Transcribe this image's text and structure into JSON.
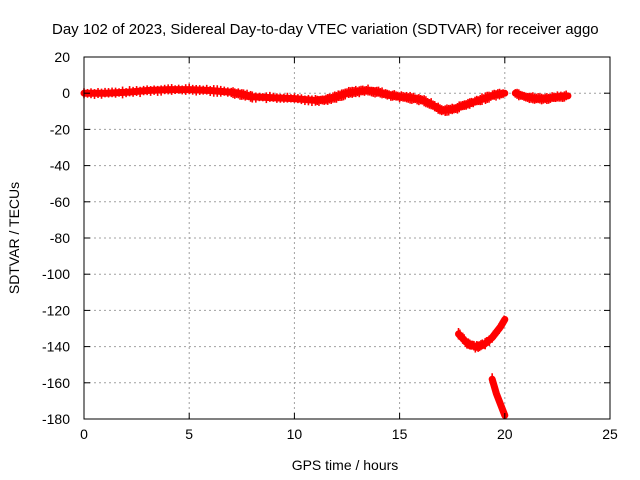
{
  "chart_data": {
    "type": "scatter",
    "title": "Day 102 of 2023, Sidereal Day-to-day VTEC variation (SDTVAR) for receiver aggo",
    "xlabel": "GPS time / hours",
    "ylabel": "SDTVAR / TECUs",
    "xlim": [
      0,
      25
    ],
    "ylim": [
      -180,
      20
    ],
    "xticks": [
      0,
      5,
      10,
      15,
      20,
      25
    ],
    "yticks": [
      20,
      0,
      -20,
      -40,
      -60,
      -80,
      -100,
      -120,
      -140,
      -160,
      -180
    ],
    "grid": true,
    "marker_color": "#ff0000",
    "series": [
      {
        "name": "main",
        "x": [
          0,
          1,
          2,
          3,
          4,
          5,
          6,
          7,
          7.5,
          8,
          9,
          10,
          11,
          11.5,
          12,
          12.5,
          13,
          13.5,
          14,
          14.5,
          15,
          15.5,
          16,
          16.5,
          17,
          17.5,
          18,
          18.5,
          19,
          19.5,
          20
        ],
        "y": [
          0,
          0,
          0.5,
          1.5,
          2,
          2,
          1.5,
          0.5,
          -0.5,
          -2,
          -2.5,
          -3,
          -4,
          -3.5,
          -2,
          0,
          1,
          1.5,
          0.5,
          -1,
          -2,
          -2.5,
          -3.5,
          -6,
          -9.5,
          -9,
          -7,
          -5,
          -3,
          -1,
          0
        ]
      },
      {
        "name": "late-segment",
        "x": [
          20.5,
          21,
          21.5,
          22,
          22.5,
          23
        ],
        "y": [
          0,
          -2,
          -3,
          -3,
          -2,
          -1.5
        ]
      },
      {
        "name": "arc-low",
        "x": [
          17.8,
          18.2,
          18.6,
          19,
          19.4,
          19.8,
          20
        ],
        "y": [
          -133,
          -138,
          -140,
          -139,
          -135,
          -129,
          -125
        ]
      },
      {
        "name": "drop-low",
        "x": [
          19.4,
          19.6,
          19.8,
          20
        ],
        "y": [
          -158,
          -166,
          -172,
          -178
        ]
      }
    ]
  }
}
